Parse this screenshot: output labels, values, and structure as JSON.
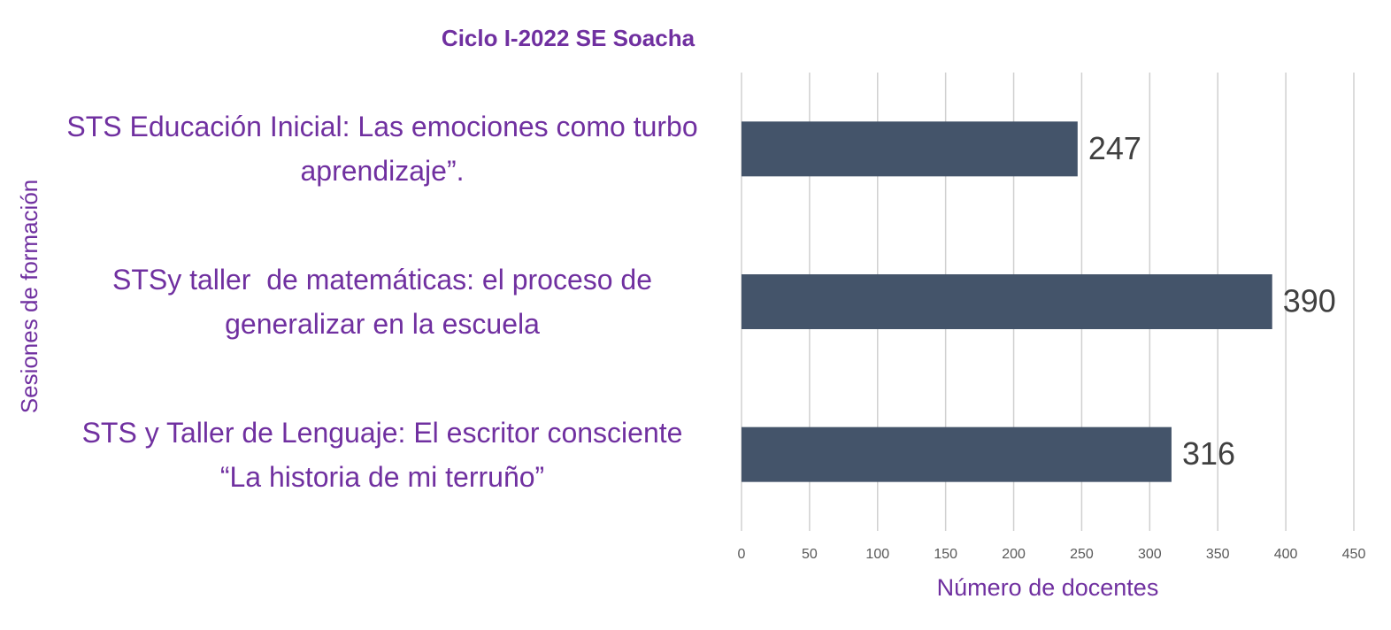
{
  "chart_data": {
    "type": "barh",
    "title": "Ciclo I-2022  SE Soacha",
    "x_label": "Número de docentes",
    "y_label": "Sesiones de formación",
    "categories": [
      "STS Educación Inicial: Las emociones como turbo aprendizaje”.",
      "STSy taller  de matemáticas: el proceso de generalizar en la escuela",
      "STS y Taller de Lenguaje: El escritor consciente  “La historia de mi terruño”"
    ],
    "values": [
      247,
      390,
      316
    ],
    "color": "#44546a",
    "xlim": [
      0,
      450
    ],
    "xticks": [
      0,
      50,
      100,
      150,
      200,
      250,
      300,
      350,
      400,
      450
    ],
    "grid": true
  }
}
